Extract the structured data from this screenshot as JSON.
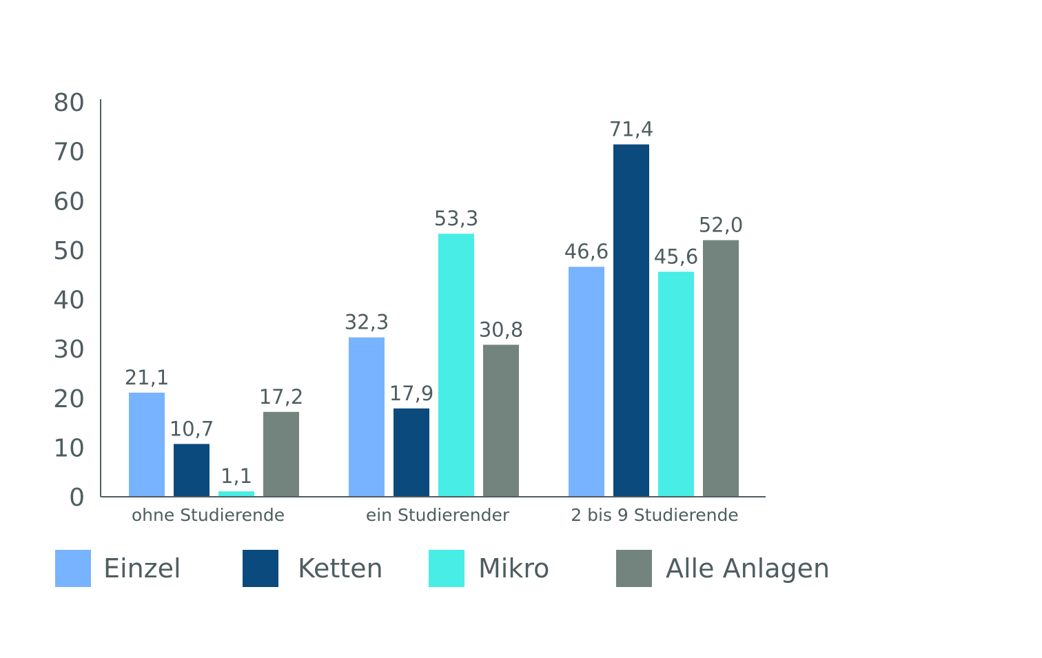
{
  "chart_data": {
    "type": "bar",
    "categories": [
      "ohne Studierende",
      "ein Studierender",
      "2 bis 9 Studierende"
    ],
    "series": [
      {
        "name": "Einzel",
        "color": "#78b3ff",
        "values": [
          21.1,
          32.3,
          46.6
        ],
        "labels": [
          "21,1",
          "32,3",
          "46,6"
        ]
      },
      {
        "name": "Ketten",
        "color": "#0b4a7d",
        "values": [
          10.7,
          17.9,
          71.4
        ],
        "labels": [
          "10,7",
          "17,9",
          "71,4"
        ]
      },
      {
        "name": "Mikro",
        "color": "#48ede6",
        "values": [
          1.1,
          53.3,
          45.6
        ],
        "labels": [
          "1,1",
          "53,3",
          "45,6"
        ]
      },
      {
        "name": "Alle Anlagen",
        "color": "#73847f",
        "values": [
          17.2,
          30.8,
          52.0
        ],
        "labels": [
          "17,2",
          "30,8",
          "52,0"
        ]
      }
    ],
    "yticks": [
      "0",
      "10",
      "20",
      "30",
      "40",
      "50",
      "60",
      "70",
      "80"
    ],
    "ylim": [
      0,
      80
    ],
    "xlabel": "",
    "ylabel": "",
    "grid": false,
    "legend_position": "bottom"
  }
}
